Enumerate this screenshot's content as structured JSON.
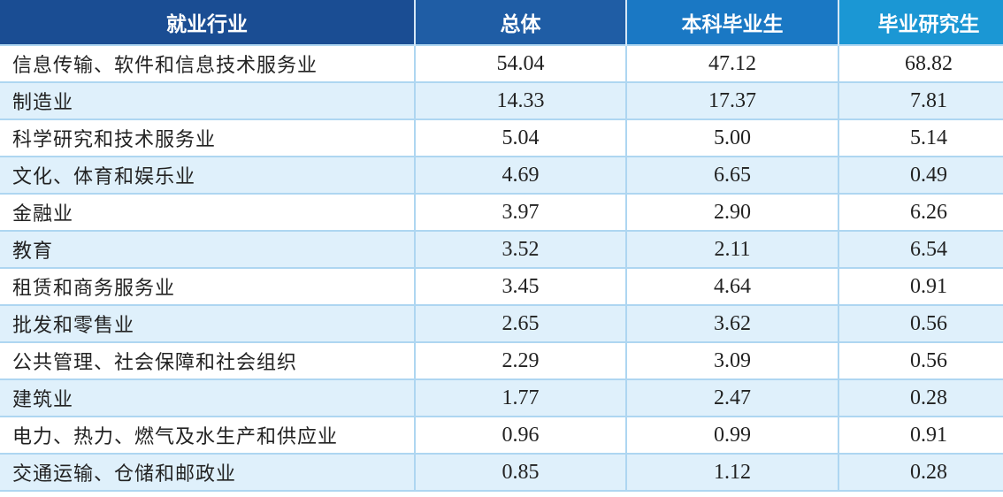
{
  "header": {
    "industry": "就业行业",
    "overall": "总体",
    "undergrad": "本科毕业生",
    "graduate": "毕业研究生"
  },
  "rows": [
    {
      "industry": "信息传输、软件和信息技术服务业",
      "overall": "54.04",
      "undergrad": "47.12",
      "graduate": "68.82"
    },
    {
      "industry": "制造业",
      "overall": "14.33",
      "undergrad": "17.37",
      "graduate": "7.81"
    },
    {
      "industry": "科学研究和技术服务业",
      "overall": "5.04",
      "undergrad": "5.00",
      "graduate": "5.14"
    },
    {
      "industry": "文化、体育和娱乐业",
      "overall": "4.69",
      "undergrad": "6.65",
      "graduate": "0.49"
    },
    {
      "industry": "金融业",
      "overall": "3.97",
      "undergrad": "2.90",
      "graduate": "6.26"
    },
    {
      "industry": "教育",
      "overall": "3.52",
      "undergrad": "2.11",
      "graduate": "6.54"
    },
    {
      "industry": "租赁和商务服务业",
      "overall": "3.45",
      "undergrad": "4.64",
      "graduate": "0.91"
    },
    {
      "industry": "批发和零售业",
      "overall": "2.65",
      "undergrad": "3.62",
      "graduate": "0.56"
    },
    {
      "industry": "公共管理、社会保障和社会组织",
      "overall": "2.29",
      "undergrad": "3.09",
      "graduate": "0.56"
    },
    {
      "industry": "建筑业",
      "overall": "1.77",
      "undergrad": "2.47",
      "graduate": "0.28"
    },
    {
      "industry": "电力、热力、燃气及水生产和供应业",
      "overall": "0.96",
      "undergrad": "0.99",
      "graduate": "0.91"
    },
    {
      "industry": "交通运输、仓储和邮政业",
      "overall": "0.85",
      "undergrad": "1.12",
      "graduate": "0.28"
    }
  ]
}
